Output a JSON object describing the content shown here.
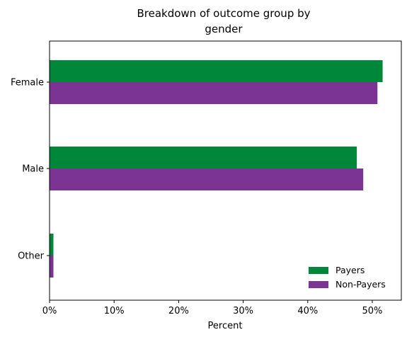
{
  "chart_data": {
    "type": "bar",
    "orientation": "horizontal",
    "title_lines": [
      "Breakdown of outcome group by",
      "gender"
    ],
    "xlabel": "Percent",
    "ylabel": "",
    "categories": [
      "Female",
      "Male",
      "Other"
    ],
    "series": [
      {
        "name": "Payers",
        "color": "#00873a",
        "values": [
          51.6,
          47.6,
          0.6
        ]
      },
      {
        "name": "Non-Payers",
        "color": "#7b3394",
        "values": [
          50.8,
          48.6,
          0.6
        ]
      }
    ],
    "xlim": [
      0,
      54.5
    ],
    "xticks": [
      0,
      10,
      20,
      30,
      40,
      50
    ],
    "xtick_labels": [
      "0%",
      "10%",
      "20%",
      "30%",
      "40%",
      "50%"
    ],
    "grid": false,
    "legend_position": "lower-right"
  }
}
